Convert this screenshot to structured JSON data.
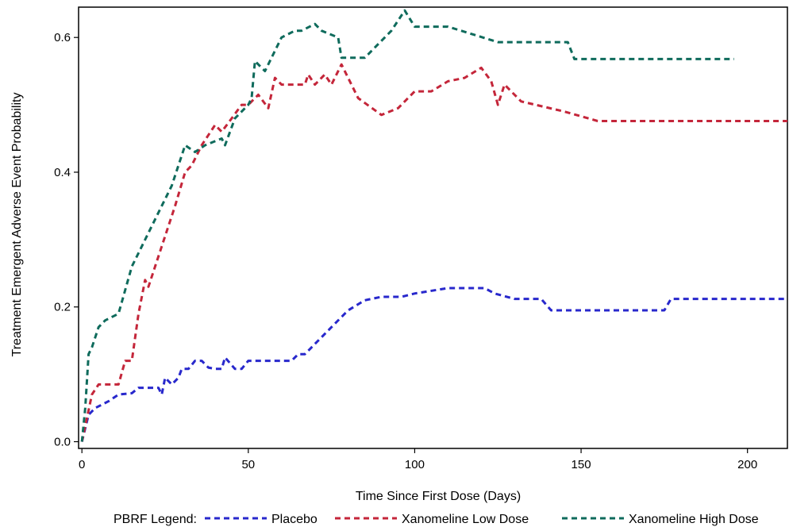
{
  "chart_data": {
    "type": "line",
    "title": "",
    "xlabel": "Time Since First Dose (Days)",
    "ylabel": "Treatment Emergent Adverse Event Probability",
    "xlim": [
      -1,
      212
    ],
    "ylim": [
      -0.01,
      0.645
    ],
    "xticks": [
      0,
      50,
      100,
      150,
      200
    ],
    "yticks": [
      0.0,
      0.2,
      0.4,
      0.6
    ],
    "xtick_labels": [
      "0",
      "50",
      "100",
      "150",
      "200"
    ],
    "ytick_labels": [
      "0.0",
      "0.2",
      "0.4",
      "0.6"
    ],
    "grid": false,
    "legend": {
      "title": "PBRF Legend:",
      "placement": "bottom",
      "entries": [
        "Placebo",
        "Xanomeline Low Dose",
        "Xanomeline High Dose"
      ]
    },
    "series": [
      {
        "name": "Placebo",
        "color": "#2828cc",
        "x": [
          0,
          2,
          4,
          8,
          11,
          15,
          17,
          23,
          24,
          25,
          27,
          29,
          30,
          32,
          34,
          36,
          38,
          40,
          42,
          43,
          46,
          48,
          50,
          60,
          63,
          65,
          67,
          70,
          75,
          80,
          85,
          90,
          96,
          100,
          110,
          116,
          121,
          124,
          130,
          138,
          141,
          142,
          148,
          160,
          170,
          175,
          177,
          212
        ],
        "y": [
          0.0,
          0.04,
          0.05,
          0.06,
          0.07,
          0.072,
          0.08,
          0.08,
          0.07,
          0.095,
          0.085,
          0.095,
          0.108,
          0.108,
          0.12,
          0.12,
          0.11,
          0.108,
          0.108,
          0.125,
          0.108,
          0.108,
          0.12,
          0.12,
          0.12,
          0.13,
          0.13,
          0.145,
          0.17,
          0.195,
          0.21,
          0.215,
          0.215,
          0.22,
          0.228,
          0.228,
          0.228,
          0.22,
          0.212,
          0.212,
          0.195,
          0.195,
          0.195,
          0.195,
          0.195,
          0.195,
          0.212,
          0.212
        ]
      },
      {
        "name": "Xanomeline Low Dose",
        "color": "#c4263a",
        "x": [
          0,
          3,
          5,
          8,
          11,
          13,
          15,
          17,
          19,
          20,
          24,
          28,
          31,
          33,
          36,
          40,
          42,
          45,
          48,
          50,
          53,
          56,
          58,
          60,
          63,
          67,
          68,
          70,
          73,
          75,
          78,
          83,
          90,
          95,
          100,
          105,
          110,
          115,
          120,
          123,
          125,
          127,
          132,
          145,
          155,
          212
        ],
        "y": [
          0.0,
          0.07,
          0.085,
          0.085,
          0.085,
          0.12,
          0.12,
          0.19,
          0.24,
          0.23,
          0.29,
          0.35,
          0.4,
          0.41,
          0.44,
          0.47,
          0.46,
          0.48,
          0.5,
          0.5,
          0.515,
          0.495,
          0.54,
          0.53,
          0.53,
          0.53,
          0.545,
          0.53,
          0.545,
          0.53,
          0.56,
          0.51,
          0.485,
          0.495,
          0.52,
          0.52,
          0.535,
          0.54,
          0.555,
          0.535,
          0.5,
          0.53,
          0.505,
          0.49,
          0.476,
          0.476
        ]
      },
      {
        "name": "Xanomeline High Dose",
        "color": "#0f6b5c",
        "x": [
          0,
          1,
          2,
          3,
          5,
          7,
          11,
          15,
          18,
          22,
          27,
          31,
          34,
          37,
          42,
          43,
          46,
          50,
          51,
          52,
          55,
          60,
          64,
          66,
          70,
          72,
          77,
          78,
          85,
          93,
          97,
          100,
          110,
          125,
          146,
          148,
          155,
          196
        ],
        "y": [
          0.0,
          0.05,
          0.13,
          0.14,
          0.17,
          0.18,
          0.19,
          0.26,
          0.29,
          0.33,
          0.38,
          0.44,
          0.43,
          0.44,
          0.45,
          0.44,
          0.48,
          0.5,
          0.51,
          0.565,
          0.55,
          0.6,
          0.61,
          0.61,
          0.62,
          0.61,
          0.6,
          0.57,
          0.57,
          0.61,
          0.64,
          0.616,
          0.616,
          0.593,
          0.593,
          0.568,
          0.568,
          0.568
        ]
      }
    ]
  }
}
